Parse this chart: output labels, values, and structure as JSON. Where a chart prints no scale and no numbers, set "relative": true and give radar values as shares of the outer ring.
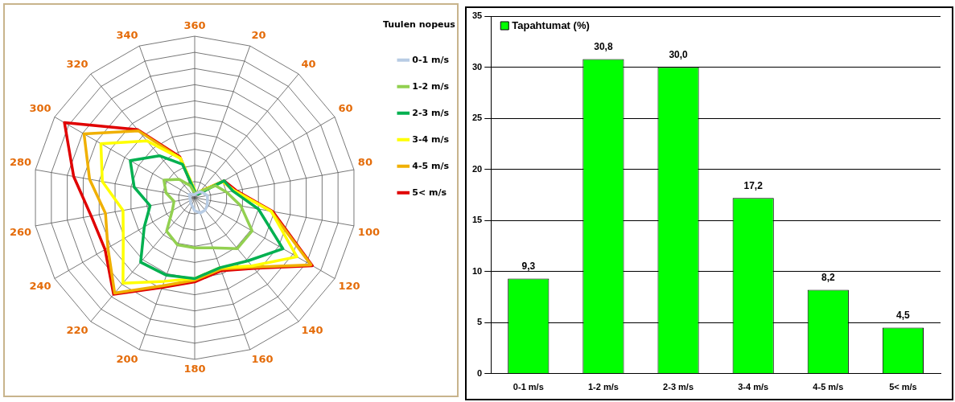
{
  "chart_data": [
    {
      "type": "radar",
      "relative": true,
      "legend": "right",
      "legend_title": "Tuulen nopeus",
      "grid": true,
      "categories": [
        "360",
        "20",
        "40",
        "60",
        "80",
        "100",
        "120",
        "140",
        "160",
        "180",
        "200",
        "220",
        "240",
        "260",
        "280",
        "300",
        "320",
        "340"
      ],
      "series": [
        {
          "name": "0-1 m/s",
          "color": "#b8cce4",
          "values": [
            0.02,
            0.03,
            0.05,
            0.06,
            0.08,
            0.08,
            0.09,
            0.1,
            0.1,
            0.08,
            0.05,
            0.04,
            0.03,
            0.03,
            0.03,
            0.04,
            0.03,
            0.02
          ]
        },
        {
          "name": "1-2 m/s",
          "color": "#92d050",
          "values": [
            0.03,
            0.03,
            0.05,
            0.15,
            0.2,
            0.29,
            0.41,
            0.41,
            0.33,
            0.31,
            0.31,
            0.27,
            0.16,
            0.13,
            0.18,
            0.22,
            0.15,
            0.08
          ]
        },
        {
          "name": "2-3 m/s",
          "color": "#00b050",
          "values": [
            0.04,
            0.03,
            0.03,
            0.21,
            0.24,
            0.4,
            0.63,
            0.51,
            0.46,
            0.5,
            0.51,
            0.52,
            0.36,
            0.28,
            0.38,
            0.46,
            0.34,
            0.22
          ]
        },
        {
          "name": "3-4 m/s",
          "color": "#ffff00",
          "values": [
            0.05,
            0.03,
            0.05,
            0.2,
            0.25,
            0.48,
            0.73,
            0.55,
            0.46,
            0.5,
            0.55,
            0.69,
            0.51,
            0.45,
            0.58,
            0.67,
            0.46,
            0.26
          ]
        },
        {
          "name": "4-5 m/s",
          "color": "#f0b000",
          "values": [
            0.04,
            0.03,
            0.05,
            0.2,
            0.25,
            0.48,
            0.83,
            0.56,
            0.47,
            0.51,
            0.58,
            0.77,
            0.62,
            0.56,
            0.66,
            0.79,
            0.54,
            0.26
          ]
        },
        {
          "name": "5< m/s",
          "color": "#e00000",
          "values": [
            0.04,
            0.03,
            0.05,
            0.21,
            0.26,
            0.49,
            0.84,
            0.57,
            0.48,
            0.52,
            0.59,
            0.78,
            0.64,
            0.65,
            0.76,
            0.93,
            0.55,
            0.27
          ]
        }
      ]
    },
    {
      "type": "bar",
      "legend": "top left",
      "grid": "y",
      "categories": [
        "0-1 m/s",
        "1-2 m/s",
        "2-3 m/s",
        "3-4 m/s",
        "4-5 m/s",
        "5< m/s"
      ],
      "ylim": [
        0,
        35
      ],
      "yticks": [
        0,
        5,
        10,
        15,
        20,
        25,
        30,
        35
      ],
      "series": [
        {
          "name": "Tapahtumat (%)",
          "color": "#00ff00",
          "values": [
            9.3,
            30.8,
            30.0,
            17.2,
            8.2,
            4.5
          ],
          "value_labels": [
            "9,3",
            "30,8",
            "30,0",
            "17,2",
            "8,2",
            "4,5"
          ]
        }
      ]
    }
  ]
}
